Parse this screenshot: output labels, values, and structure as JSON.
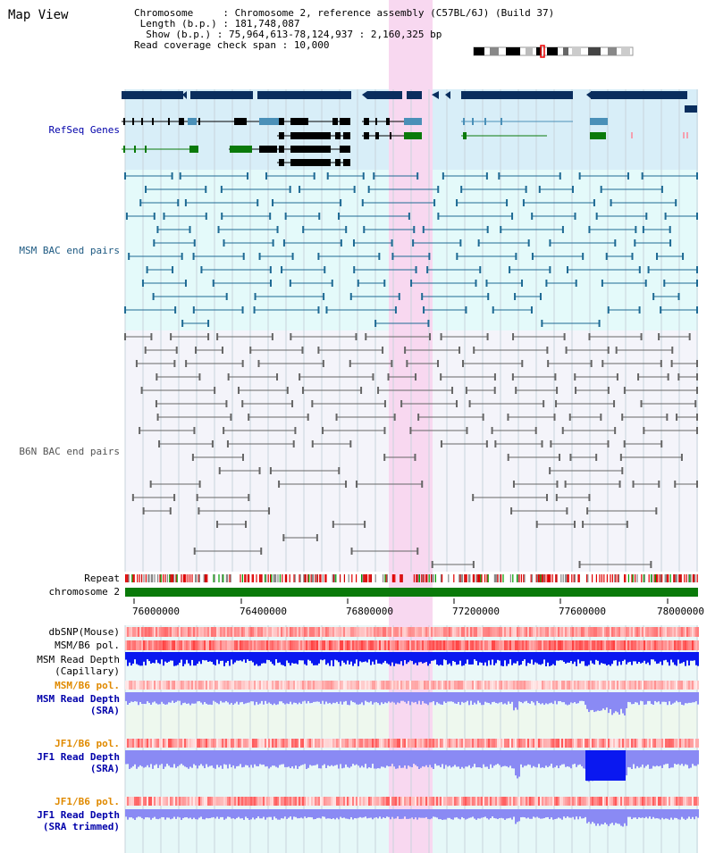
{
  "header": {
    "title": "Map View",
    "chromosome_key": "Chromosome     : ",
    "chromosome_val": "Chromosome 2, reference assembly (C57BL/6J) (Build 37)",
    "length_key": " Length (b.p.) : ",
    "length_val": "181,748,087",
    "show_key": "  Show (b.p.) : ",
    "show_val": "75,964,613-78,124,937 : 2,160,325 bp",
    "coverage_key": "Read coverage check span : ",
    "coverage_val": "10,000"
  },
  "tracks": {
    "refseq": "RefSeq Genes",
    "msm_bac": "MSM BAC end pairs",
    "b6n_bac": "B6N BAC end pairs",
    "repeat": "Repeat",
    "chromosome": "chromosome 2",
    "dbsnp": "dbSNP(Mouse)",
    "msm_b6_pol": "MSM/B6 pol.",
    "msm_depth_cap": "MSM Read Depth\n(Capillary)",
    "msm_b6_pol2": "MSM/B6 pol.",
    "msm_depth_sra": "MSM Read Depth\n(SRA)",
    "jf1_b6_pol": "JF1/B6 pol.",
    "jf1_depth_sra": "JF1 Read Depth\n(SRA)",
    "jf1_b6_pol2": "JF1/B6 pol.",
    "jf1_depth_trim": "JF1 Read Depth\n(SRA trimmed)"
  },
  "axis": {
    "ticks": [
      "76000000",
      "76400000",
      "76800000",
      "77200000",
      "77600000",
      "78000000"
    ]
  },
  "colors": {
    "highlight": "#f8d8f0",
    "refseq_bg": "#d8eef8",
    "msm_bg": "#e4fafa",
    "b6n_bg": "#f4f4fa",
    "gene_dark": "#0a2e5e",
    "gene_mid": "#4a90b8",
    "gene_green": "#0a7a0a",
    "bac_teal": "#1e6a94",
    "bac_gray": "#666666",
    "chrom_green": "#0a7a0a",
    "depth_blue": "#0a18f0",
    "depth_light": "#8a8af4"
  }
}
